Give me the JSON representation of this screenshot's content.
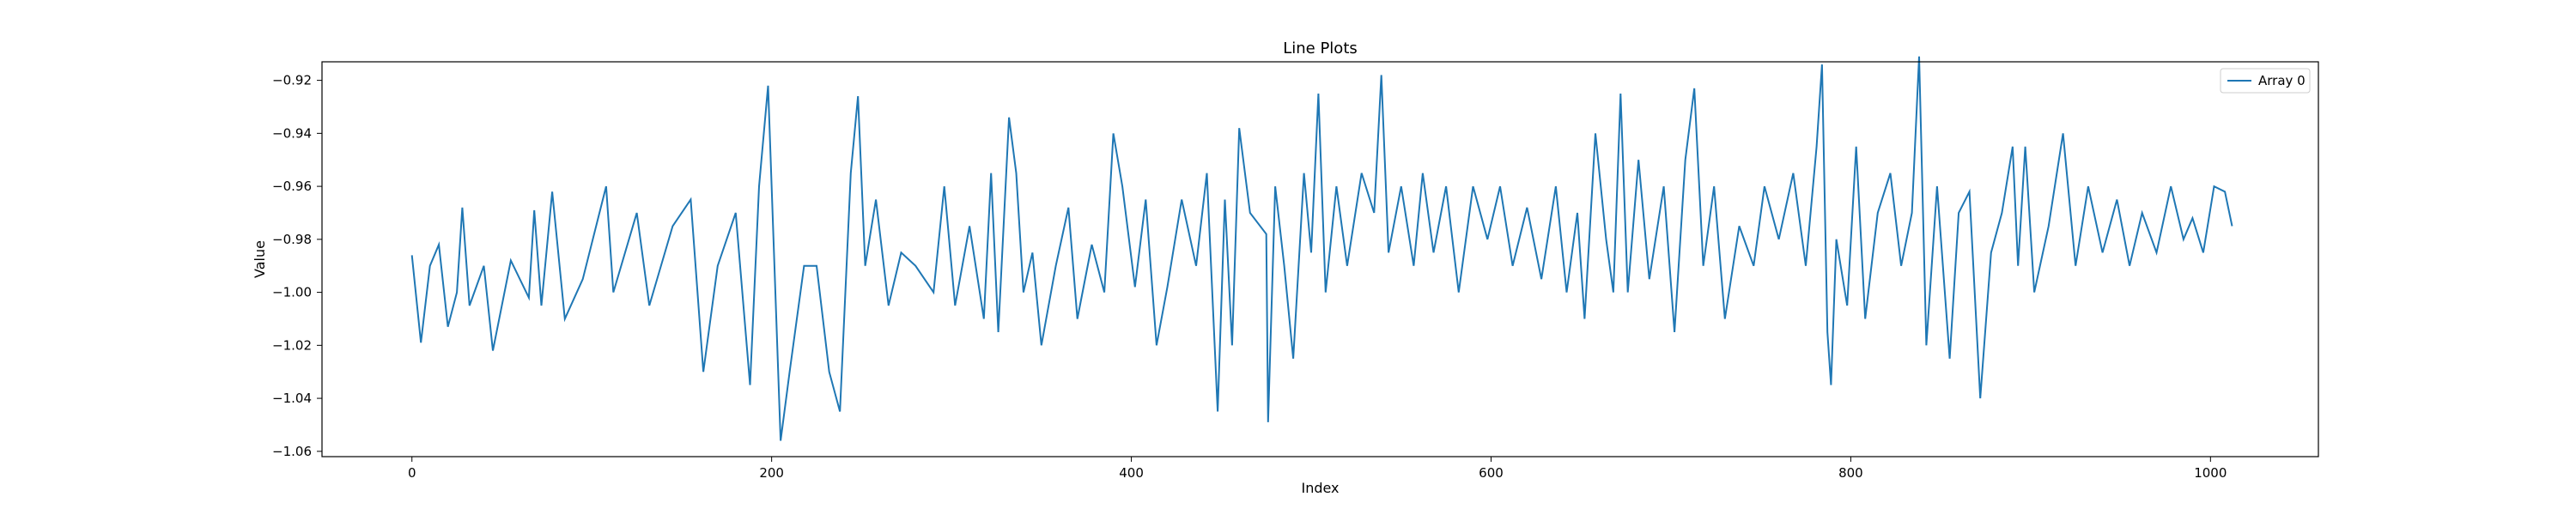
{
  "chart_data": {
    "type": "line",
    "title": "Line Plots",
    "xlabel": "Index",
    "ylabel": "Value",
    "xlim": [
      -50,
      1060
    ],
    "ylim": [
      -1.062,
      -0.913
    ],
    "xticks": [
      0,
      200,
      400,
      600,
      800,
      1000
    ],
    "yticks": [
      -1.06,
      -1.04,
      -1.02,
      -1.0,
      -0.98,
      -0.96,
      -0.94,
      -0.92
    ],
    "grid": false,
    "legend_position": "top-right",
    "series": [
      {
        "name": "Array 0",
        "color": "#1f77b4",
        "keypoints": [
          [
            0,
            -0.986
          ],
          [
            5,
            -1.019
          ],
          [
            10,
            -0.99
          ],
          [
            15,
            -0.982
          ],
          [
            20,
            -1.013
          ],
          [
            25,
            -1.0
          ],
          [
            28,
            -0.968
          ],
          [
            32,
            -1.005
          ],
          [
            40,
            -0.99
          ],
          [
            45,
            -1.022
          ],
          [
            55,
            -0.988
          ],
          [
            65,
            -1.002
          ],
          [
            68,
            -0.969
          ],
          [
            72,
            -1.005
          ],
          [
            78,
            -0.962
          ],
          [
            85,
            -1.01
          ],
          [
            95,
            -0.995
          ],
          [
            108,
            -0.96
          ],
          [
            112,
            -1.0
          ],
          [
            125,
            -0.97
          ],
          [
            132,
            -1.005
          ],
          [
            145,
            -0.975
          ],
          [
            155,
            -0.965
          ],
          [
            162,
            -1.03
          ],
          [
            170,
            -0.99
          ],
          [
            180,
            -0.97
          ],
          [
            188,
            -1.035
          ],
          [
            193,
            -0.96
          ],
          [
            198,
            -0.922
          ],
          [
            205,
            -1.056
          ],
          [
            210,
            -1.03
          ],
          [
            218,
            -0.99
          ],
          [
            225,
            -0.99
          ],
          [
            232,
            -1.03
          ],
          [
            238,
            -1.045
          ],
          [
            244,
            -0.955
          ],
          [
            248,
            -0.926
          ],
          [
            252,
            -0.99
          ],
          [
            258,
            -0.965
          ],
          [
            265,
            -1.005
          ],
          [
            272,
            -0.985
          ],
          [
            280,
            -0.99
          ],
          [
            290,
            -1.0
          ],
          [
            296,
            -0.96
          ],
          [
            302,
            -1.005
          ],
          [
            310,
            -0.975
          ],
          [
            318,
            -1.01
          ],
          [
            322,
            -0.955
          ],
          [
            326,
            -1.015
          ],
          [
            332,
            -0.934
          ],
          [
            336,
            -0.955
          ],
          [
            340,
            -1.0
          ],
          [
            345,
            -0.985
          ],
          [
            350,
            -1.02
          ],
          [
            358,
            -0.99
          ],
          [
            365,
            -0.968
          ],
          [
            370,
            -1.01
          ],
          [
            378,
            -0.982
          ],
          [
            385,
            -1.0
          ],
          [
            390,
            -0.94
          ],
          [
            395,
            -0.96
          ],
          [
            402,
            -0.998
          ],
          [
            408,
            -0.965
          ],
          [
            414,
            -1.02
          ],
          [
            420,
            -0.998
          ],
          [
            428,
            -0.965
          ],
          [
            436,
            -0.99
          ],
          [
            442,
            -0.955
          ],
          [
            448,
            -1.045
          ],
          [
            452,
            -0.965
          ],
          [
            456,
            -1.02
          ],
          [
            460,
            -0.938
          ],
          [
            466,
            -0.97
          ],
          [
            475,
            -0.978
          ],
          [
            476,
            -1.049
          ],
          [
            480,
            -0.96
          ],
          [
            485,
            -0.99
          ],
          [
            490,
            -1.025
          ],
          [
            496,
            -0.955
          ],
          [
            500,
            -0.985
          ],
          [
            504,
            -0.925
          ],
          [
            508,
            -1.0
          ],
          [
            514,
            -0.96
          ],
          [
            520,
            -0.99
          ],
          [
            528,
            -0.955
          ],
          [
            535,
            -0.97
          ],
          [
            539,
            -0.918
          ],
          [
            543,
            -0.985
          ],
          [
            550,
            -0.96
          ],
          [
            557,
            -0.99
          ],
          [
            562,
            -0.955
          ],
          [
            568,
            -0.985
          ],
          [
            575,
            -0.96
          ],
          [
            582,
            -1.0
          ],
          [
            590,
            -0.96
          ],
          [
            598,
            -0.98
          ],
          [
            605,
            -0.96
          ],
          [
            612,
            -0.99
          ],
          [
            620,
            -0.968
          ],
          [
            628,
            -0.995
          ],
          [
            636,
            -0.96
          ],
          [
            642,
            -1.0
          ],
          [
            648,
            -0.97
          ],
          [
            652,
            -1.01
          ],
          [
            658,
            -0.94
          ],
          [
            664,
            -0.98
          ],
          [
            668,
            -1.0
          ],
          [
            672,
            -0.925
          ],
          [
            676,
            -1.0
          ],
          [
            682,
            -0.95
          ],
          [
            688,
            -0.995
          ],
          [
            696,
            -0.96
          ],
          [
            702,
            -1.015
          ],
          [
            708,
            -0.95
          ],
          [
            713,
            -0.923
          ],
          [
            718,
            -0.99
          ],
          [
            724,
            -0.96
          ],
          [
            730,
            -1.01
          ],
          [
            738,
            -0.975
          ],
          [
            746,
            -0.99
          ],
          [
            752,
            -0.96
          ],
          [
            760,
            -0.98
          ],
          [
            768,
            -0.955
          ],
          [
            775,
            -0.99
          ],
          [
            781,
            -0.945
          ],
          [
            784,
            -0.914
          ],
          [
            787,
            -1.015
          ],
          [
            789,
            -1.035
          ],
          [
            792,
            -0.98
          ],
          [
            798,
            -1.005
          ],
          [
            803,
            -0.945
          ],
          [
            808,
            -1.01
          ],
          [
            815,
            -0.97
          ],
          [
            822,
            -0.955
          ],
          [
            828,
            -0.99
          ],
          [
            834,
            -0.97
          ],
          [
            838,
            -0.911
          ],
          [
            842,
            -1.02
          ],
          [
            848,
            -0.96
          ],
          [
            855,
            -1.025
          ],
          [
            860,
            -0.97
          ],
          [
            866,
            -0.962
          ],
          [
            872,
            -1.04
          ],
          [
            878,
            -0.985
          ],
          [
            884,
            -0.97
          ],
          [
            890,
            -0.945
          ],
          [
            893,
            -0.99
          ],
          [
            897,
            -0.945
          ],
          [
            902,
            -1.0
          ],
          [
            910,
            -0.975
          ],
          [
            918,
            -0.94
          ],
          [
            925,
            -0.99
          ],
          [
            932,
            -0.96
          ],
          [
            940,
            -0.985
          ],
          [
            948,
            -0.965
          ],
          [
            955,
            -0.99
          ],
          [
            962,
            -0.97
          ],
          [
            970,
            -0.985
          ],
          [
            978,
            -0.96
          ],
          [
            985,
            -0.98
          ],
          [
            990,
            -0.972
          ],
          [
            996,
            -0.985
          ],
          [
            1002,
            -0.96
          ],
          [
            1008,
            -0.962
          ],
          [
            1012,
            -0.975
          ]
        ]
      }
    ]
  }
}
